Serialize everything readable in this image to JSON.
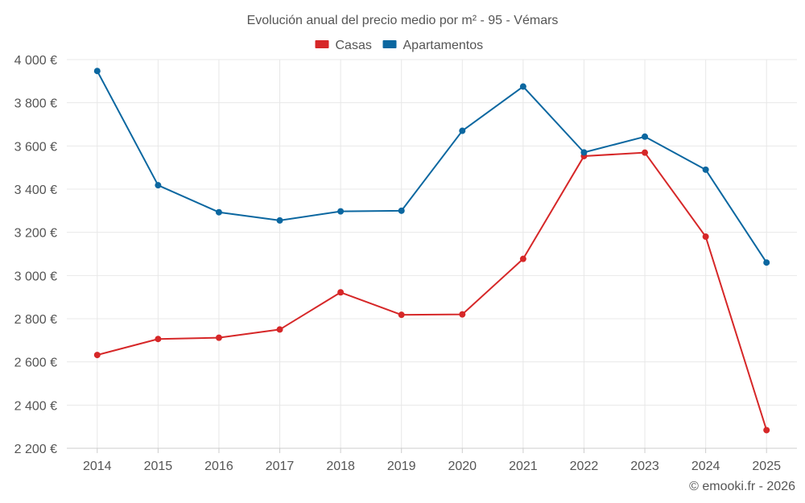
{
  "chart_data": {
    "type": "line",
    "title": "Evolución anual del precio medio por m² - 95 - Vémars",
    "categories": [
      "2014",
      "2015",
      "2016",
      "2017",
      "2018",
      "2019",
      "2020",
      "2021",
      "2022",
      "2023",
      "2024",
      "2025"
    ],
    "series": [
      {
        "name": "Casas",
        "color": "#d62728",
        "values": [
          2632,
          2706,
          2712,
          2750,
          2922,
          2818,
          2820,
          3077,
          3553,
          3569,
          3180,
          2284
        ]
      },
      {
        "name": "Apartamentos",
        "color": "#0b67a0",
        "values": [
          3947,
          3418,
          3293,
          3255,
          3297,
          3300,
          3670,
          3875,
          3570,
          3643,
          3490,
          3060
        ]
      }
    ],
    "ylim": [
      2200,
      4000
    ],
    "yticks": [
      2200,
      2400,
      2600,
      2800,
      3000,
      3200,
      3400,
      3600,
      3800,
      4000
    ],
    "ytick_labels": [
      "2 200 €",
      "2 400 €",
      "2 600 €",
      "2 800 €",
      "3 000 €",
      "3 200 €",
      "3 400 €",
      "3 600 €",
      "3 800 €",
      "4 000 €"
    ],
    "xlabel": "",
    "ylabel": "",
    "grid": true,
    "legend_position": "top-center"
  },
  "credit": "© emooki.fr - 2026"
}
